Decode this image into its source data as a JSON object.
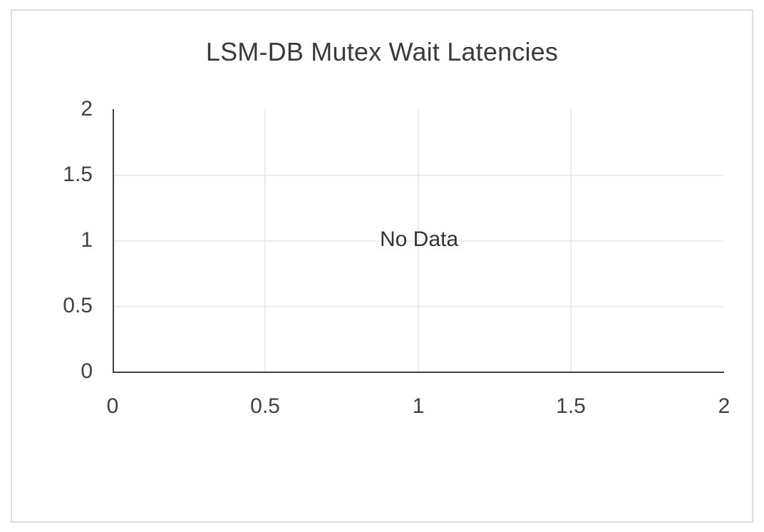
{
  "window": {
    "background_color": "#ffffff",
    "card_border_color": "#dcdcdc"
  },
  "chart_data": {
    "type": "line",
    "title": "LSM-DB Mutex Wait Latencies",
    "no_data_label": "No Data",
    "series": [],
    "x_ticks": [
      "0",
      "0.5",
      "1",
      "1.5",
      "2"
    ],
    "y_ticks": [
      "2",
      "1.5",
      "1",
      "0.5",
      "0"
    ],
    "xlim": [
      0,
      2
    ],
    "ylim": [
      0,
      2
    ],
    "xlabel": "",
    "ylabel": "",
    "grid": true,
    "gridlines_x": [
      0.5,
      1,
      1.5
    ],
    "gridlines_y": [
      0.5,
      1,
      1.5
    ],
    "legend": false,
    "colors": {
      "title_text": "#3b3b3b",
      "tick_text": "#404040",
      "no_data_text": "#333333",
      "axis": "#424242",
      "gridline": "#ececec"
    }
  }
}
